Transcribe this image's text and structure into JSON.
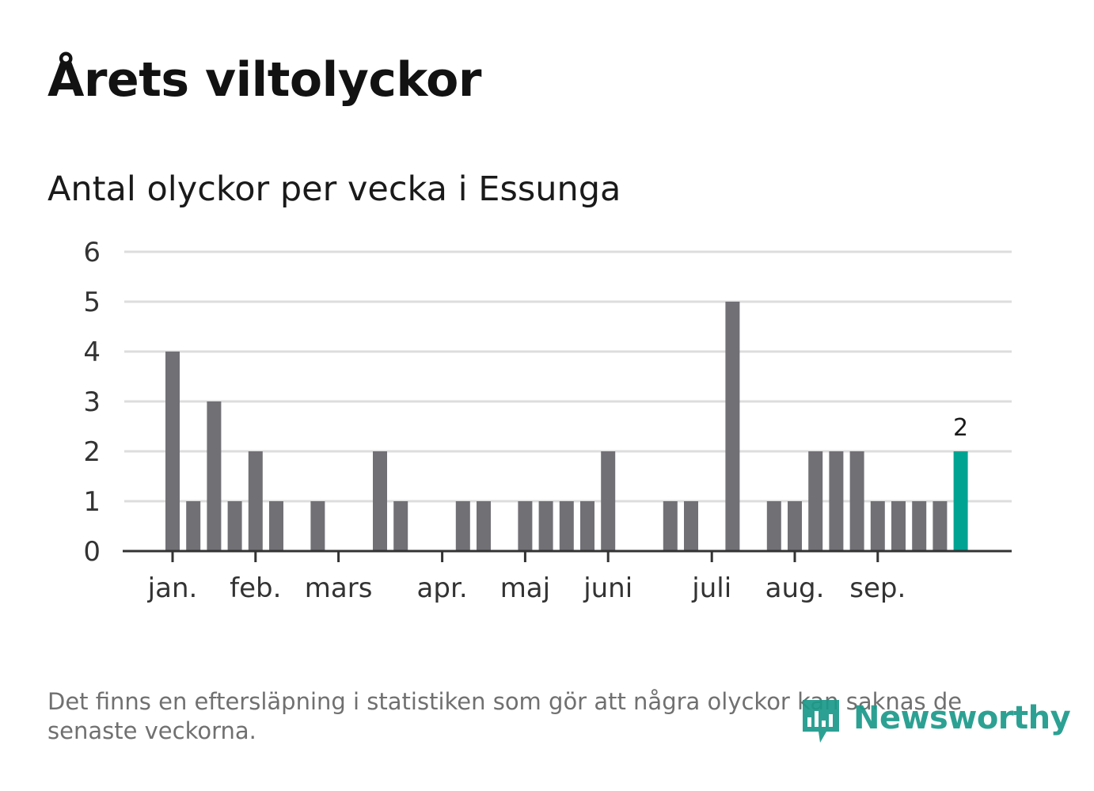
{
  "title": "Årets viltolyckor",
  "subtitle": "Antal olyckor per vecka i Essunga",
  "footnote": "Det finns en eftersläpning i statistiken som gör att några olyckor kan saknas de senaste veckorna.",
  "logo": {
    "text": "Newsworthy"
  },
  "colors": {
    "bar": "#717075",
    "highlight": "#00a392",
    "grid": "#dddddd",
    "axis": "#333333"
  },
  "chart_data": {
    "type": "bar",
    "title": "Antal olyckor per vecka i Essunga",
    "xlabel": "",
    "ylabel": "",
    "ylim": [
      0,
      6
    ],
    "yticks": [
      "0",
      "1",
      "2",
      "3",
      "4",
      "5",
      "6"
    ],
    "grid": true,
    "week_start": 1,
    "week_end": 39,
    "month_ticks": [
      {
        "label": "jan.",
        "week": 1
      },
      {
        "label": "feb.",
        "week": 5
      },
      {
        "label": "mars",
        "week": 9
      },
      {
        "label": "apr.",
        "week": 14
      },
      {
        "label": "maj",
        "week": 18
      },
      {
        "label": "juni",
        "week": 22
      },
      {
        "label": "juli",
        "week": 27
      },
      {
        "label": "aug.",
        "week": 31
      },
      {
        "label": "sep.",
        "week": 35
      }
    ],
    "weeks": [
      1,
      2,
      3,
      4,
      5,
      6,
      7,
      8,
      9,
      10,
      11,
      12,
      13,
      14,
      15,
      16,
      17,
      18,
      19,
      20,
      21,
      22,
      23,
      24,
      25,
      26,
      27,
      28,
      29,
      30,
      31,
      32,
      33,
      34,
      35,
      36,
      37,
      38,
      39
    ],
    "values": [
      4,
      1,
      3,
      1,
      2,
      1,
      0,
      1,
      0,
      0,
      2,
      1,
      0,
      0,
      1,
      1,
      0,
      1,
      1,
      1,
      1,
      2,
      0,
      0,
      1,
      1,
      0,
      5,
      0,
      1,
      1,
      2,
      2,
      2,
      1,
      1,
      1,
      1,
      2
    ],
    "highlight_index": 38,
    "highlight_label": "2"
  }
}
